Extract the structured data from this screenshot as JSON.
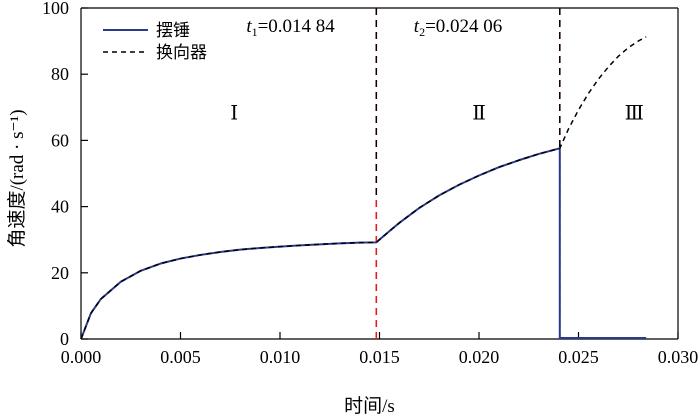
{
  "chart_data": {
    "type": "line",
    "title": "",
    "xlabel": "时间/s",
    "ylabel": "角速度/(rad · s⁻¹)",
    "xlim": [
      0.0,
      0.03
    ],
    "ylim": [
      0,
      100
    ],
    "xticks": [
      "0.000",
      "0.005",
      "0.010",
      "0.015",
      "0.020",
      "0.025",
      "0.030"
    ],
    "yticks": [
      "0",
      "20",
      "40",
      "60",
      "80",
      "100"
    ],
    "grid": false,
    "legend_position": "top-left",
    "series": [
      {
        "name": "摆锤",
        "style": "solid",
        "color": "#2b3a8f",
        "x": [
          0.0,
          0.0005,
          0.001,
          0.002,
          0.003,
          0.004,
          0.005,
          0.006,
          0.007,
          0.008,
          0.009,
          0.01,
          0.011,
          0.012,
          0.013,
          0.014,
          0.01484,
          0.0155,
          0.016,
          0.017,
          0.018,
          0.019,
          0.02,
          0.021,
          0.022,
          0.023,
          0.02406,
          0.02406,
          0.0242,
          0.0284
        ],
        "y": [
          0.0,
          7.8,
          12.1,
          17.3,
          20.6,
          22.8,
          24.3,
          25.4,
          26.3,
          27.0,
          27.5,
          27.9,
          28.3,
          28.6,
          28.9,
          29.1,
          29.2,
          32.6,
          35.1,
          39.6,
          43.4,
          46.6,
          49.4,
          51.9,
          54.0,
          55.9,
          57.6,
          0.3,
          0.3,
          0.3
        ]
      },
      {
        "name": "换向器",
        "style": "dashed",
        "color": "#000000",
        "x": [
          0.0,
          0.0005,
          0.001,
          0.002,
          0.003,
          0.004,
          0.005,
          0.006,
          0.007,
          0.008,
          0.009,
          0.01,
          0.011,
          0.012,
          0.013,
          0.014,
          0.01484,
          0.0155,
          0.016,
          0.017,
          0.018,
          0.019,
          0.02,
          0.021,
          0.022,
          0.023,
          0.02406,
          0.0245,
          0.025,
          0.0255,
          0.026,
          0.0265,
          0.027,
          0.0275,
          0.028,
          0.0284
        ],
        "y": [
          0.0,
          7.8,
          12.1,
          17.3,
          20.6,
          22.8,
          24.3,
          25.4,
          26.3,
          27.0,
          27.5,
          27.9,
          28.3,
          28.6,
          28.9,
          29.1,
          29.2,
          32.6,
          35.1,
          39.6,
          43.4,
          46.6,
          49.4,
          51.9,
          54.0,
          55.9,
          57.6,
          63.5,
          69.2,
          74.2,
          78.5,
          82.2,
          85.4,
          88.0,
          90.0,
          91.3
        ]
      }
    ],
    "vlines": [
      {
        "x": 0.01484,
        "label_var": "t",
        "label_sub": "1",
        "label_value": "=0.014 84"
      },
      {
        "x": 0.02406,
        "label_var": "t",
        "label_sub": "2",
        "label_value": "=0.024 06"
      }
    ],
    "regions": [
      {
        "label": "Ⅰ",
        "x": 0.0077,
        "y": 68.5
      },
      {
        "label": "Ⅱ",
        "x": 0.02,
        "y": 68.5
      },
      {
        "label": "Ⅲ",
        "x": 0.0278,
        "y": 68.5
      }
    ],
    "colors": {
      "vline_red": "#e02020",
      "vline_black": "#000000",
      "axis": "#000000"
    }
  }
}
